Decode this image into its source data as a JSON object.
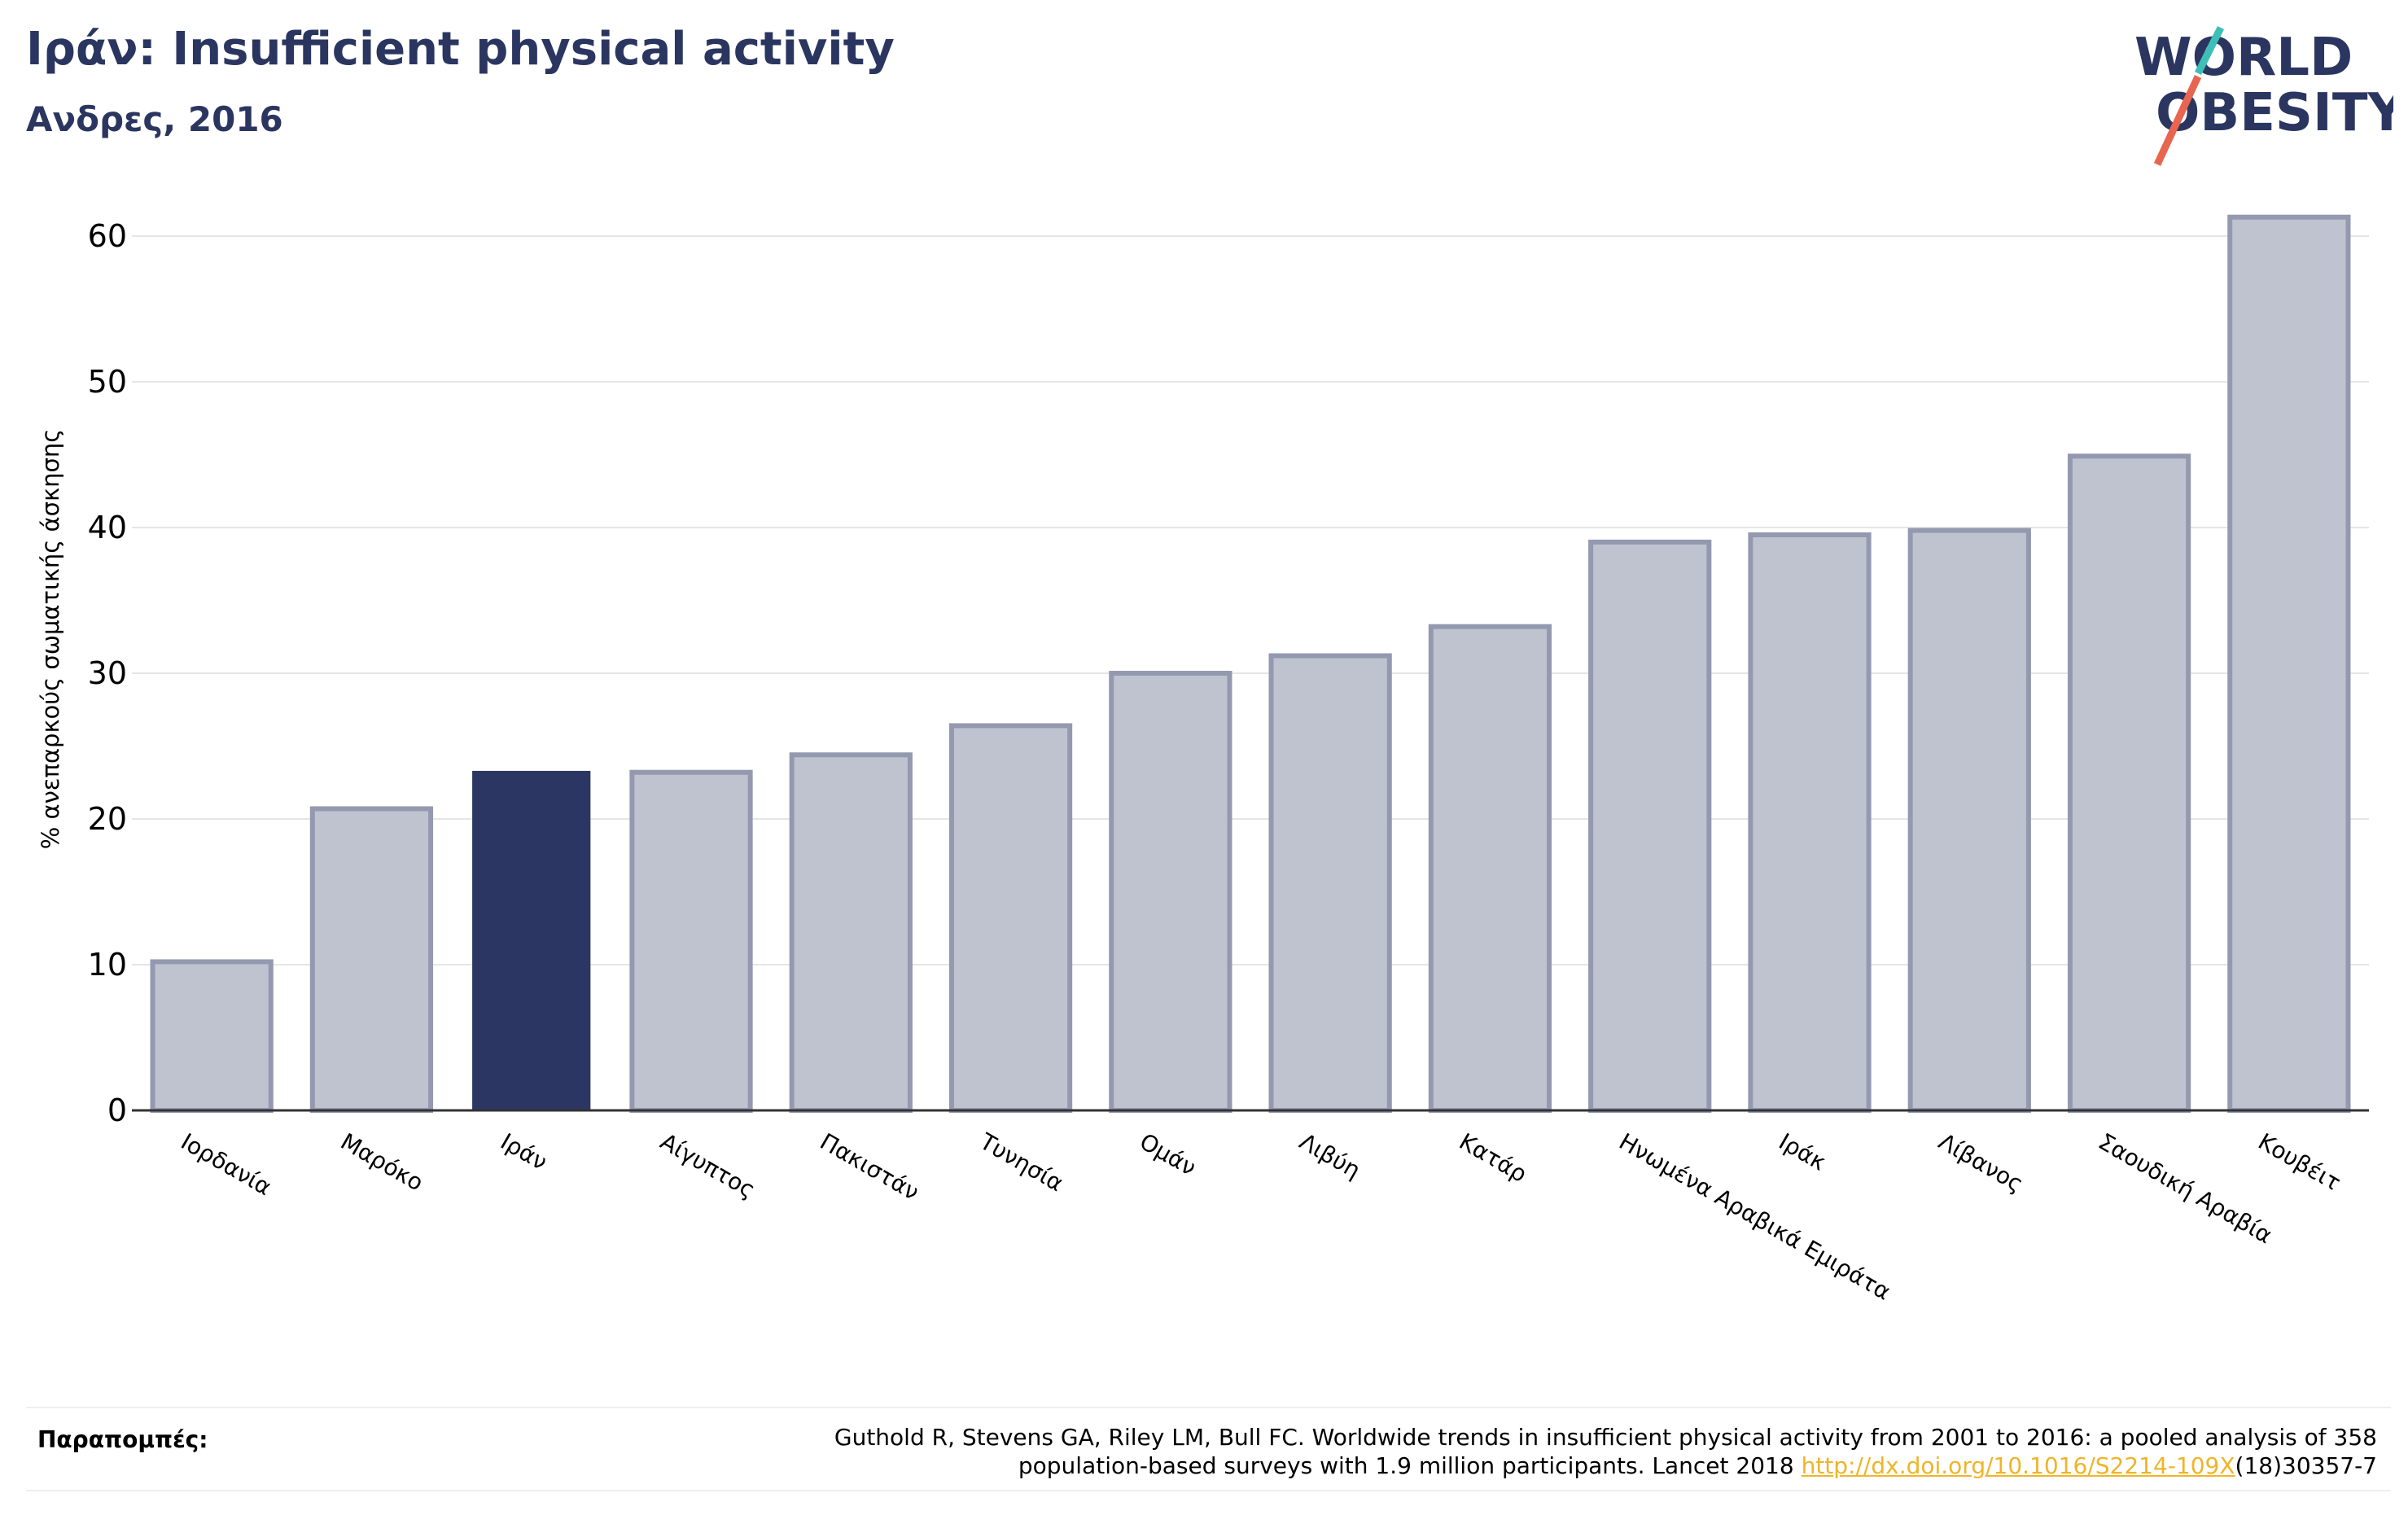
{
  "header": {
    "title": "Ιράν: Insufficient physical activity",
    "subtitle": "Ανδρες, 2016"
  },
  "logo": {
    "line1": "WORLD",
    "line2": "OBESITY",
    "text_color": "#2b3660",
    "slash_colors": [
      "#3dbfb8",
      "#e8654f"
    ]
  },
  "colors": {
    "highlight_bar": "#2c3663",
    "other_bar_fill": "#bfc3cf",
    "other_bar_stroke": "#9499b0",
    "axis_text": "#000000",
    "grid": "#e6e6e6",
    "link": "#f0b429"
  },
  "chart_data": {
    "type": "bar",
    "title": "Ιράν: Insufficient physical activity",
    "subtitle": "Ανδρες, 2016",
    "xlabel": "",
    "ylabel": "% ανεπαρκούς σωματικής άσκησης",
    "categories": [
      "Ιορδανία",
      "Μαρόκο",
      "Ιράν",
      "Αίγυπτος",
      "Πακιστάν",
      "Τυνησία",
      "Ομάν",
      "Λιβύη",
      "Κατάρ",
      "Ηνωμένα Αραβικά Εμιράτα",
      "Ιράκ",
      "Λίβανος",
      "Σαουδική Αραβία",
      "Κουβέιτ"
    ],
    "values": [
      10.2,
      20.7,
      23.3,
      23.2,
      24.4,
      26.4,
      30.0,
      31.2,
      33.2,
      39.0,
      39.5,
      39.8,
      44.9,
      61.3
    ],
    "highlight": "Ιράν",
    "yticks": [
      0,
      10,
      20,
      30,
      40,
      50,
      60
    ],
    "ylim": [
      0,
      63
    ],
    "grid": true,
    "legend": "none"
  },
  "footer": {
    "ref_label": "Παραπομπές:",
    "ref_line1": "Guthold R, Stevens GA, Riley LM, Bull FC. Worldwide trends in insufficient physical activity from 2001 to 2016: a pooled analysis of 358",
    "ref_line2_pre": "population-based surveys with 1.9 million participants. Lancet 2018 ",
    "ref_link": "http://dx.doi.org/10.1016/S2214-109X",
    "ref_line2_post": "(18)30357-7"
  }
}
